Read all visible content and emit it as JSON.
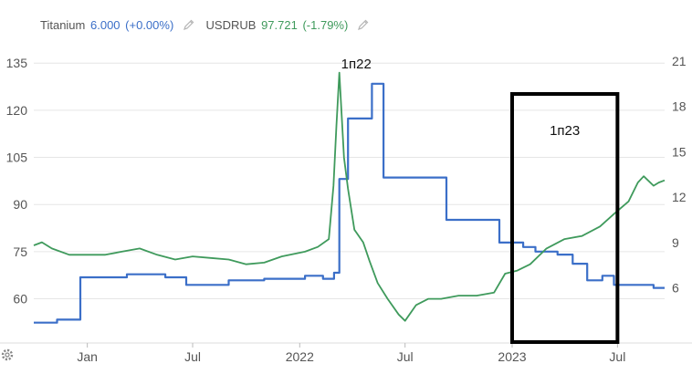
{
  "legend": {
    "series1_name": "Titanium",
    "series1_value": "6.000",
    "series1_change": "(+0.00%)",
    "series2_name": "USDRUB",
    "series2_value": "97.721",
    "series2_change": "(-1.79%)"
  },
  "annotations": {
    "label_2022": "1п22",
    "label_2023": "1п23"
  },
  "colors": {
    "titanium": "#3b6fc8",
    "usdrub": "#3f9a5c",
    "grid": "#e6e6e6",
    "text": "#555555",
    "box": "#000000"
  },
  "icons": [
    "pencil-icon",
    "gear-icon"
  ],
  "chart_data": {
    "type": "line",
    "x_ticks": [
      "Jan",
      "Jul",
      "2022",
      "Jul",
      "2023",
      "Jul"
    ],
    "x_range": [
      "2020-10-01",
      "2023-09-20"
    ],
    "x_tick_dates": [
      "2021-01-01",
      "2021-07-01",
      "2022-01-01",
      "2022-07-01",
      "2023-01-01",
      "2023-07-01"
    ],
    "y_left": {
      "ticks": [
        60,
        75,
        90,
        105,
        120,
        135
      ],
      "range": [
        50,
        140
      ],
      "series": "USDRUB"
    },
    "y_right": {
      "ticks": [
        6,
        9,
        12,
        15,
        18,
        21
      ],
      "range": [
        3.2,
        21.9
      ],
      "series": "Titanium"
    },
    "series": [
      {
        "name": "Titanium",
        "axis": "right",
        "step": true,
        "points": [
          [
            "2020-10-01",
            3.7
          ],
          [
            "2020-11-10",
            3.9
          ],
          [
            "2020-12-20",
            6.7
          ],
          [
            "2021-03-10",
            6.9
          ],
          [
            "2021-05-15",
            6.7
          ],
          [
            "2021-06-20",
            6.2
          ],
          [
            "2021-09-01",
            6.5
          ],
          [
            "2021-11-01",
            6.6
          ],
          [
            "2022-01-10",
            6.8
          ],
          [
            "2022-02-10",
            6.6
          ],
          [
            "2022-03-01",
            7.0
          ],
          [
            "2022-03-10",
            13.2
          ],
          [
            "2022-03-25",
            17.2
          ],
          [
            "2022-05-05",
            19.5
          ],
          [
            "2022-05-25",
            13.3
          ],
          [
            "2022-09-10",
            10.5
          ],
          [
            "2022-12-10",
            9.0
          ],
          [
            "2023-01-20",
            8.7
          ],
          [
            "2023-02-10",
            8.4
          ],
          [
            "2023-03-20",
            8.2
          ],
          [
            "2023-04-15",
            7.6
          ],
          [
            "2023-05-10",
            6.5
          ],
          [
            "2023-06-05",
            6.8
          ],
          [
            "2023-06-25",
            6.2
          ],
          [
            "2023-09-01",
            6.0
          ],
          [
            "2023-09-20",
            6.0
          ]
        ]
      },
      {
        "name": "USDRUB",
        "axis": "left",
        "step": false,
        "points": [
          [
            "2020-10-01",
            77
          ],
          [
            "2020-10-15",
            78
          ],
          [
            "2020-11-01",
            76
          ],
          [
            "2020-12-01",
            74
          ],
          [
            "2021-01-01",
            74
          ],
          [
            "2021-02-01",
            74
          ],
          [
            "2021-03-01",
            75
          ],
          [
            "2021-04-01",
            76
          ],
          [
            "2021-05-01",
            74
          ],
          [
            "2021-06-01",
            72.5
          ],
          [
            "2021-07-01",
            73.5
          ],
          [
            "2021-08-01",
            73
          ],
          [
            "2021-09-01",
            72.5
          ],
          [
            "2021-10-01",
            71
          ],
          [
            "2021-11-01",
            71.5
          ],
          [
            "2021-12-01",
            73.5
          ],
          [
            "2022-01-10",
            75
          ],
          [
            "2022-02-01",
            76.5
          ],
          [
            "2022-02-20",
            79
          ],
          [
            "2022-02-28",
            96
          ],
          [
            "2022-03-05",
            115
          ],
          [
            "2022-03-10",
            132
          ],
          [
            "2022-03-18",
            105
          ],
          [
            "2022-03-25",
            95
          ],
          [
            "2022-04-05",
            82
          ],
          [
            "2022-04-20",
            78
          ],
          [
            "2022-05-01",
            72
          ],
          [
            "2022-05-15",
            65
          ],
          [
            "2022-06-01",
            60
          ],
          [
            "2022-06-20",
            55
          ],
          [
            "2022-07-01",
            53
          ],
          [
            "2022-07-20",
            58
          ],
          [
            "2022-08-10",
            60
          ],
          [
            "2022-09-01",
            60
          ],
          [
            "2022-10-01",
            61
          ],
          [
            "2022-11-01",
            61
          ],
          [
            "2022-12-01",
            62
          ],
          [
            "2022-12-20",
            68
          ],
          [
            "2023-01-10",
            69
          ],
          [
            "2023-02-01",
            71
          ],
          [
            "2023-03-01",
            76
          ],
          [
            "2023-04-01",
            79
          ],
          [
            "2023-05-01",
            80
          ],
          [
            "2023-06-01",
            83
          ],
          [
            "2023-06-25",
            87
          ],
          [
            "2023-07-20",
            91
          ],
          [
            "2023-08-05",
            97
          ],
          [
            "2023-08-15",
            99
          ],
          [
            "2023-09-01",
            96
          ],
          [
            "2023-09-10",
            97
          ],
          [
            "2023-09-20",
            97.7
          ]
        ]
      }
    ],
    "highlight_box": {
      "from": "2023-01-01",
      "to": "2023-07-01"
    },
    "grid": "horizontal",
    "legend_position": "top-left"
  }
}
